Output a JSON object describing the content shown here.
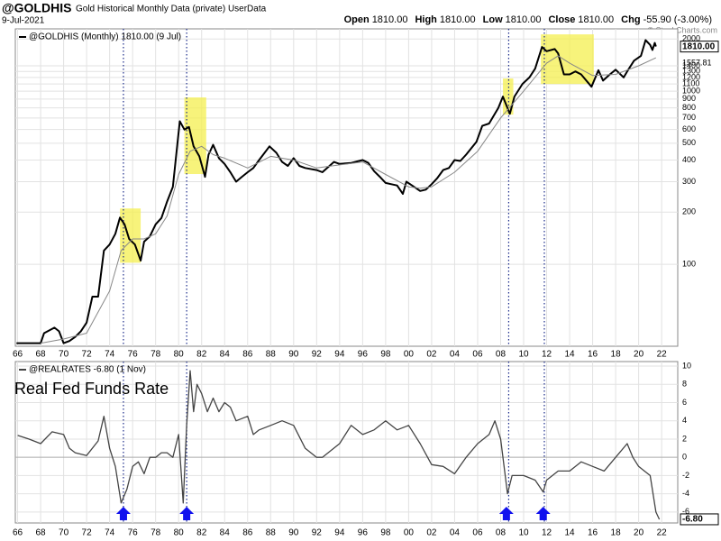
{
  "header": {
    "symbol": "@GOLDHIS",
    "description": "Gold Historical Monthly Data (private) UserData",
    "date": "9-Jul-2021",
    "quote": [
      {
        "label": "Open",
        "value": "1810.00"
      },
      {
        "label": "High",
        "value": "1810.00"
      },
      {
        "label": "Low",
        "value": "1810.00"
      },
      {
        "label": "Close",
        "value": "1810.00"
      },
      {
        "label": "Chg",
        "value": "-55.90 (-3.00%)"
      }
    ],
    "copyright": "© StockCharts.com"
  },
  "chart_data": [
    {
      "type": "line",
      "log_scale": true,
      "grid": true,
      "xlim": [
        1965.8,
        2023.4
      ],
      "ylim": [
        33.6,
        2290
      ],
      "xticks": [
        {
          "value": 1966,
          "label": "66"
        },
        {
          "value": 1968,
          "label": "68"
        },
        {
          "value": 1970,
          "label": "70"
        },
        {
          "value": 1972,
          "label": "72"
        },
        {
          "value": 1974,
          "label": "74"
        },
        {
          "value": 1976,
          "label": "76"
        },
        {
          "value": 1978,
          "label": "78"
        },
        {
          "value": 1980,
          "label": "80"
        },
        {
          "value": 1982,
          "label": "82"
        },
        {
          "value": 1984,
          "label": "84"
        },
        {
          "value": 1986,
          "label": "86"
        },
        {
          "value": 1988,
          "label": "88"
        },
        {
          "value": 1990,
          "label": "90"
        },
        {
          "value": 1992,
          "label": "92"
        },
        {
          "value": 1994,
          "label": "94"
        },
        {
          "value": 1996,
          "label": "96"
        },
        {
          "value": 1998,
          "label": "98"
        },
        {
          "value": 2000,
          "label": "00"
        },
        {
          "value": 2002,
          "label": "02"
        },
        {
          "value": 2004,
          "label": "04"
        },
        {
          "value": 2006,
          "label": "06"
        },
        {
          "value": 2008,
          "label": "08"
        },
        {
          "value": 2010,
          "label": "10"
        },
        {
          "value": 2012,
          "label": "12"
        },
        {
          "value": 2014,
          "label": "14"
        },
        {
          "value": 2016,
          "label": "16"
        },
        {
          "value": 2018,
          "label": "18"
        },
        {
          "value": 2020,
          "label": "20"
        },
        {
          "value": 2022,
          "label": "22"
        }
      ],
      "yticks": [
        100,
        200,
        300,
        400,
        500,
        600,
        700,
        800,
        900,
        1000,
        1100,
        1200,
        1300,
        1400,
        2000
      ],
      "series": [
        {
          "name": "@GOLDHIS (Monthly) 1810.00 (9 Jul)",
          "color": "#000000",
          "width": 2,
          "last_label": "1810.00",
          "x": [
            1965.9,
            1968.0,
            1968.3,
            1969.2,
            1969.6,
            1970.0,
            1970.5,
            1971.0,
            1971.5,
            1972.0,
            1972.5,
            1973.0,
            1973.5,
            1974.0,
            1974.5,
            1974.9,
            1975.3,
            1975.7,
            1976.2,
            1976.7,
            1977.0,
            1977.5,
            1978.0,
            1978.5,
            1979.0,
            1979.5,
            1979.9,
            1980.1,
            1980.5,
            1980.9,
            1981.3,
            1981.8,
            1982.3,
            1982.6,
            1983.0,
            1983.5,
            1984.0,
            1984.5,
            1985.0,
            1985.5,
            1986.0,
            1986.5,
            1987.0,
            1987.9,
            1988.5,
            1989.0,
            1989.5,
            1990.0,
            1990.5,
            1991.0,
            1992.0,
            1992.5,
            1993.5,
            1994.0,
            1995.0,
            1996.0,
            1996.5,
            1997.0,
            1997.5,
            1998.0,
            1998.5,
            1999.0,
            1999.5,
            1999.8,
            2000.3,
            2001.0,
            2001.5,
            2002.0,
            2002.5,
            2003.0,
            2003.5,
            2004.0,
            2004.5,
            2005.0,
            2005.9,
            2006.4,
            2007.0,
            2007.8,
            2008.2,
            2008.8,
            2009.2,
            2009.9,
            2010.5,
            2011.0,
            2011.6,
            2012.0,
            2012.7,
            2013.0,
            2013.5,
            2014.0,
            2014.5,
            2015.0,
            2015.9,
            2016.5,
            2016.9,
            2017.5,
            2018.0,
            2018.7,
            2019.0,
            2019.6,
            2020.2,
            2020.6,
            2021.0,
            2021.2,
            2021.4,
            2021.5
          ],
          "values": [
            35,
            35,
            40,
            43,
            41,
            35,
            36,
            38,
            41,
            46,
            65,
            65,
            120,
            130,
            150,
            186,
            170,
            140,
            130,
            105,
            135,
            145,
            170,
            185,
            230,
            280,
            500,
            670,
            600,
            620,
            480,
            420,
            320,
            430,
            490,
            410,
            380,
            340,
            300,
            320,
            340,
            360,
            400,
            480,
            440,
            390,
            370,
            410,
            370,
            360,
            350,
            340,
            390,
            380,
            385,
            400,
            385,
            345,
            320,
            295,
            290,
            285,
            255,
            300,
            285,
            265,
            270,
            290,
            315,
            350,
            360,
            400,
            395,
            430,
            510,
            630,
            650,
            800,
            930,
            740,
            930,
            1100,
            1200,
            1350,
            1800,
            1700,
            1750,
            1650,
            1250,
            1250,
            1300,
            1250,
            1060,
            1320,
            1150,
            1250,
            1330,
            1200,
            1300,
            1500,
            1600,
            1970,
            1850,
            1730,
            1900,
            1810
          ]
        },
        {
          "color": "#888888",
          "width": 1,
          "last_label": "1557.81",
          "x": [
            1968,
            1970,
            1972,
            1974,
            1975,
            1976,
            1977,
            1978,
            1979,
            1980,
            1981,
            1982,
            1983,
            1984,
            1986,
            1988,
            1990,
            1992,
            1994,
            1996,
            1998,
            2000,
            2001,
            2002,
            2004,
            2006,
            2008,
            2010,
            2012,
            2013,
            2014,
            2016,
            2018,
            2020,
            2021.5
          ],
          "values": [
            35,
            37,
            40,
            70,
            120,
            140,
            140,
            150,
            190,
            330,
            450,
            480,
            430,
            410,
            360,
            420,
            400,
            360,
            375,
            390,
            330,
            280,
            275,
            280,
            340,
            450,
            700,
            1000,
            1450,
            1600,
            1450,
            1230,
            1250,
            1400,
            1557.81
          ]
        }
      ],
      "highlights": [
        {
          "x": [
            1974.9,
            1976.7
          ],
          "y": [
            102,
            210
          ]
        },
        {
          "x": [
            1980.5,
            1982.4
          ],
          "y": [
            332,
            920
          ]
        },
        {
          "x": [
            2008.2,
            2009.1
          ],
          "y": [
            732,
            1183
          ]
        },
        {
          "x": [
            2011.5,
            2016.1
          ],
          "y": [
            1100,
            2128
          ]
        }
      ],
      "vlines": [
        1975.2,
        1980.7,
        2008.7,
        2011.8
      ]
    },
    {
      "type": "line",
      "grid": true,
      "xlim": [
        1965.8,
        2023.4
      ],
      "ylim": [
        -7.2,
        10.5
      ],
      "xticks": [
        {
          "value": 1966,
          "label": "66"
        },
        {
          "value": 1968,
          "label": "68"
        },
        {
          "value": 1970,
          "label": "70"
        },
        {
          "value": 1972,
          "label": "72"
        },
        {
          "value": 1974,
          "label": "74"
        },
        {
          "value": 1976,
          "label": "76"
        },
        {
          "value": 1978,
          "label": "78"
        },
        {
          "value": 1980,
          "label": "80"
        },
        {
          "value": 1982,
          "label": "82"
        },
        {
          "value": 1984,
          "label": "84"
        },
        {
          "value": 1986,
          "label": "86"
        },
        {
          "value": 1988,
          "label": "88"
        },
        {
          "value": 1990,
          "label": "90"
        },
        {
          "value": 1992,
          "label": "92"
        },
        {
          "value": 1994,
          "label": "94"
        },
        {
          "value": 1996,
          "label": "96"
        },
        {
          "value": 1998,
          "label": "98"
        },
        {
          "value": 2000,
          "label": "00"
        },
        {
          "value": 2002,
          "label": "02"
        },
        {
          "value": 2004,
          "label": "04"
        },
        {
          "value": 2006,
          "label": "06"
        },
        {
          "value": 2008,
          "label": "08"
        },
        {
          "value": 2010,
          "label": "10"
        },
        {
          "value": 2012,
          "label": "12"
        },
        {
          "value": 2014,
          "label": "14"
        },
        {
          "value": 2016,
          "label": "16"
        },
        {
          "value": 2018,
          "label": "18"
        },
        {
          "value": 2020,
          "label": "20"
        },
        {
          "value": 2022,
          "label": "22"
        }
      ],
      "yticks": [
        -6,
        -4,
        -2,
        0,
        2,
        4,
        6,
        8,
        10
      ],
      "annotation": "Real Fed Funds Rate",
      "series": [
        {
          "name": "@REALRATES -6.80 (1 Nov)",
          "color": "#444444",
          "width": 1.3,
          "last_label": "-6.80",
          "x": [
            1966,
            1967,
            1968,
            1969,
            1970,
            1970.5,
            1971,
            1972,
            1973,
            1973.5,
            1974,
            1974.5,
            1975.0,
            1975.5,
            1976,
            1976.5,
            1977,
            1977.5,
            1978,
            1978.5,
            1979,
            1979.5,
            1980,
            1980.4,
            1980.7,
            1981,
            1981.3,
            1981.6,
            1982,
            1982.5,
            1983,
            1983.5,
            1984,
            1984.5,
            1985,
            1986,
            1986.5,
            1987,
            1988,
            1989,
            1990,
            1991,
            1992,
            1992.5,
            1993,
            1994,
            1995,
            1996,
            1997,
            1998,
            1999,
            2000,
            2001,
            2002,
            2003,
            2004,
            2005,
            2006,
            2007,
            2007.5,
            2008.0,
            2008.6,
            2009,
            2010,
            2011,
            2011.7,
            2012,
            2013,
            2014,
            2015,
            2016,
            2017,
            2018,
            2019,
            2019.5,
            2020,
            2020.5,
            2021,
            2021.5,
            2021.8
          ],
          "values": [
            2.4,
            2.0,
            1.5,
            2.8,
            2.5,
            1.0,
            0.5,
            0.2,
            1.8,
            4.5,
            1.0,
            -1.0,
            -5.0,
            -3.5,
            -1.0,
            -0.5,
            -1.8,
            0,
            0,
            0.5,
            0.5,
            0,
            2.5,
            -5.0,
            3.5,
            9.5,
            5,
            8,
            7,
            5,
            6.5,
            5,
            6,
            5.5,
            4,
            4.5,
            2.5,
            3,
            3.5,
            4,
            3.5,
            1,
            0,
            0,
            0.5,
            1.5,
            3.5,
            2.5,
            3,
            4,
            3,
            3.5,
            1.5,
            -0.8,
            -1.0,
            -1.8,
            0,
            1.5,
            2.5,
            4,
            2,
            -4.0,
            -2,
            -2,
            -2.5,
            -3.8,
            -2.5,
            -1.5,
            -1.5,
            -0.5,
            -1.0,
            -1.5,
            0,
            1.5,
            0,
            -1.0,
            -1.5,
            -2.0,
            -6.0,
            -6.8
          ]
        }
      ],
      "arrows": [
        1975.2,
        1980.7,
        2008.5,
        2011.7
      ],
      "vlines": [
        1975.2,
        1980.7,
        2008.7,
        2011.8
      ]
    }
  ]
}
